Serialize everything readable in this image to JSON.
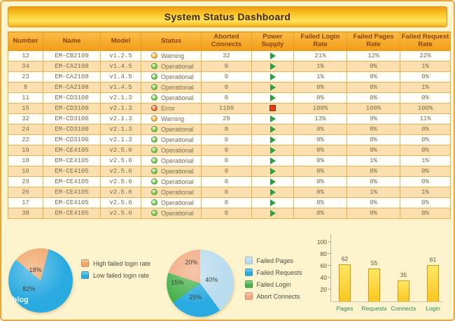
{
  "header": {
    "title": "System Status Dashboard"
  },
  "colors": {
    "status": {
      "Warning": "#f6a51f",
      "Operational": "#5cc22e",
      "Error": "#ea4f1c"
    },
    "power": {
      "play": "#2f9e43",
      "stop": "#e03d17"
    },
    "accent": "#f29c16"
  },
  "table": {
    "columns": [
      "Number",
      "Name",
      "Model",
      "Status",
      "Aborted Connects",
      "Power Supply",
      "Failed Login Rate",
      "Failed Pages Rate",
      "Failed Request Rate"
    ],
    "rows": [
      {
        "number": "12",
        "name": "EM-CB2109",
        "model": "v1.2.5",
        "status": "Warning",
        "aborted": "32",
        "power": "play",
        "login": "21%",
        "pages": "12%",
        "request": "22%"
      },
      {
        "number": "34",
        "name": "EM-CA2108",
        "model": "v1.4.5",
        "status": "Operational",
        "aborted": "0",
        "power": "play",
        "login": "1%",
        "pages": "0%",
        "request": "1%"
      },
      {
        "number": "23",
        "name": "EM-CA2108",
        "model": "v1.4.5",
        "status": "Operational",
        "aborted": "0",
        "power": "play",
        "login": "1%",
        "pages": "0%",
        "request": "0%"
      },
      {
        "number": "8",
        "name": "EM-CA2108",
        "model": "v1.4.5",
        "status": "Operational",
        "aborted": "0",
        "power": "play",
        "login": "0%",
        "pages": "0%",
        "request": "1%"
      },
      {
        "number": "11",
        "name": "EM-CD3100",
        "model": "v2.1.3",
        "status": "Operational",
        "aborted": "0",
        "power": "play",
        "login": "0%",
        "pages": "0%",
        "request": "0%"
      },
      {
        "number": "15",
        "name": "EM-CD3100",
        "model": "v2.1.3",
        "status": "Error",
        "aborted": "1108",
        "power": "stop",
        "login": "100%",
        "pages": "100%",
        "request": "100%"
      },
      {
        "number": "32",
        "name": "EM-CD3100",
        "model": "v2.1.3",
        "status": "Warning",
        "aborted": "28",
        "power": "play",
        "login": "13%",
        "pages": "9%",
        "request": "11%"
      },
      {
        "number": "24",
        "name": "EM-CD3100",
        "model": "v2.1.3",
        "status": "Operational",
        "aborted": "0",
        "power": "play",
        "login": "0%",
        "pages": "0%",
        "request": "0%"
      },
      {
        "number": "22",
        "name": "EM-CD3100",
        "model": "v2.1.3",
        "status": "Operational",
        "aborted": "0",
        "power": "play",
        "login": "0%",
        "pages": "0%",
        "request": "0%"
      },
      {
        "number": "19",
        "name": "EM-CE4105",
        "model": "v2.5.6",
        "status": "Operational",
        "aborted": "0",
        "power": "play",
        "login": "0%",
        "pages": "0%",
        "request": "0%"
      },
      {
        "number": "18",
        "name": "EM-CE4105",
        "model": "v2.5.6",
        "status": "Operational",
        "aborted": "0",
        "power": "play",
        "login": "0%",
        "pages": "1%",
        "request": "1%"
      },
      {
        "number": "16",
        "name": "EM-CE4105",
        "model": "v2.5.6",
        "status": "Operational",
        "aborted": "0",
        "power": "play",
        "login": "0%",
        "pages": "0%",
        "request": "0%"
      },
      {
        "number": "29",
        "name": "EM-CE4105",
        "model": "v2.5.6",
        "status": "Operational",
        "aborted": "0",
        "power": "play",
        "login": "0%",
        "pages": "0%",
        "request": "0%"
      },
      {
        "number": "26",
        "name": "EM-CE4105",
        "model": "v2.5.6",
        "status": "Operational",
        "aborted": "0",
        "power": "play",
        "login": "0%",
        "pages": "1%",
        "request": "1%"
      },
      {
        "number": "17",
        "name": "EM-CE4105",
        "model": "v2.5.6",
        "status": "Operational",
        "aborted": "0",
        "power": "play",
        "login": "0%",
        "pages": "0%",
        "request": "0%"
      },
      {
        "number": "30",
        "name": "EM-CE4105",
        "model": "v2.5.6",
        "status": "Operational",
        "aborted": "0",
        "power": "play",
        "login": "0%",
        "pages": "0%",
        "request": "0%"
      }
    ]
  },
  "chart_data": [
    {
      "type": "pie",
      "name": "login-rate-pie",
      "slices": [
        {
          "label": "High failed login rate",
          "value": 18,
          "pct": "18%",
          "color": "#f0a566"
        },
        {
          "label": "Low failed login rate",
          "value": 82,
          "pct": "82%",
          "color": "#29aae1"
        }
      ],
      "start_angle_deg": -50,
      "legend_position": "right",
      "watermark": "blog"
    },
    {
      "type": "pie",
      "name": "failure-breakdown-pie",
      "slices": [
        {
          "label": "Failed Pages",
          "value": 40,
          "pct": "40%",
          "color": "#b9dcef"
        },
        {
          "label": "Failed Requests",
          "value": 25,
          "pct": "25%",
          "color": "#29aae1"
        },
        {
          "label": "Failed Login",
          "value": 15,
          "pct": "15%",
          "color": "#45b14b"
        },
        {
          "label": "Abort Connects",
          "value": 20,
          "pct": "20%",
          "color": "#f0a87e"
        }
      ],
      "start_angle_deg": 0,
      "legend_position": "right"
    },
    {
      "type": "bar",
      "name": "failure-counts-bar",
      "categories": [
        "Pages",
        "Requests",
        "Connects",
        "Login"
      ],
      "values": [
        62,
        55,
        35,
        61
      ],
      "value_labels": [
        "62",
        "55",
        "35",
        "61"
      ],
      "yticks": [
        20,
        40,
        60,
        80,
        100
      ],
      "ylim": [
        0,
        110
      ],
      "grid": false,
      "bar_color": "#fac61e"
    }
  ]
}
